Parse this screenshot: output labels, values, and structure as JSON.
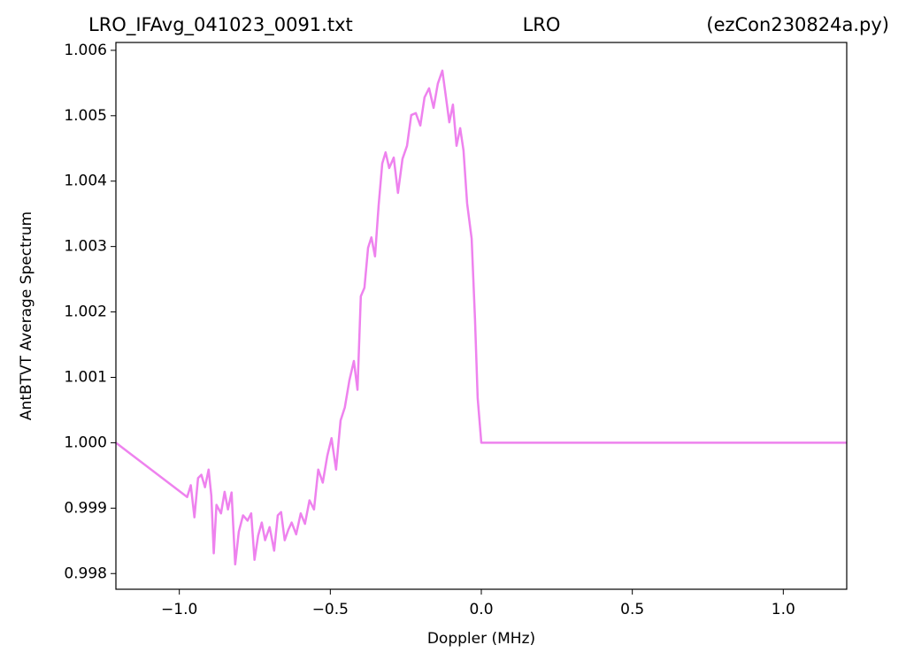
{
  "chart_data": {
    "type": "line",
    "title": "LRO",
    "title_left": "LRO_IFAvg_041023_0091.txt",
    "title_right": "(ezCon230824a.py)",
    "x_label": "Doppler (MHz)",
    "y_label": "AntBTVT Average Spectrum",
    "xlim": [
      -1.21,
      1.21
    ],
    "ylim": [
      0.99776,
      1.00612
    ],
    "xticks": [
      {
        "value": -1.0,
        "label": "−1.0"
      },
      {
        "value": -0.5,
        "label": "−0.5"
      },
      {
        "value": 0.0,
        "label": "0.0"
      },
      0.5,
      {
        "value": 1.0,
        "label": "1.0"
      }
    ],
    "yticks": [
      0.998,
      0.999,
      {
        "value": 1.0,
        "label": "1.000"
      },
      1.001,
      1.002,
      1.003,
      1.004,
      1.005,
      1.006
    ],
    "series": [
      {
        "color": "#ee82ee",
        "x": [
          -1.21,
          -0.974,
          -0.962,
          -0.95,
          -0.938,
          -0.927,
          -0.915,
          -0.903,
          -0.894,
          -0.886,
          -0.877,
          -0.862,
          -0.85,
          -0.839,
          -0.827,
          -0.815,
          -0.803,
          -0.789,
          -0.774,
          -0.762,
          -0.751,
          -0.739,
          -0.727,
          -0.716,
          -0.701,
          -0.686,
          -0.674,
          -0.663,
          -0.651,
          -0.639,
          -0.628,
          -0.613,
          -0.598,
          -0.584,
          -0.569,
          -0.554,
          -0.54,
          -0.525,
          -0.51,
          -0.496,
          -0.481,
          -0.466,
          -0.452,
          -0.437,
          -0.422,
          -0.41,
          -0.399,
          -0.387,
          -0.375,
          -0.364,
          -0.352,
          -0.34,
          -0.328,
          -0.317,
          -0.305,
          -0.29,
          -0.276,
          -0.261,
          -0.246,
          -0.232,
          -0.217,
          -0.202,
          -0.188,
          -0.173,
          -0.158,
          -0.144,
          -0.129,
          -0.117,
          -0.106,
          -0.094,
          -0.082,
          -0.07,
          -0.059,
          -0.047,
          -0.032,
          -0.021,
          -0.012,
          0.0,
          1.21
        ],
        "values": [
          1.0,
          0.99917,
          0.99935,
          0.99886,
          0.99946,
          0.99951,
          0.99932,
          0.99959,
          0.99919,
          0.99831,
          0.99905,
          0.99892,
          0.99925,
          0.99898,
          0.99924,
          0.99814,
          0.99864,
          0.99889,
          0.99881,
          0.99892,
          0.99821,
          0.99858,
          0.99878,
          0.99851,
          0.99871,
          0.99835,
          0.99889,
          0.99894,
          0.99851,
          0.99867,
          0.99878,
          0.9986,
          0.99892,
          0.99876,
          0.99912,
          0.99898,
          0.99959,
          0.99939,
          0.9998,
          1.00007,
          0.99959,
          1.00034,
          1.00054,
          1.00095,
          1.00125,
          1.00081,
          1.00224,
          1.00237,
          1.00298,
          1.00314,
          1.00285,
          1.00363,
          1.00427,
          1.00444,
          1.0042,
          1.00436,
          1.00382,
          1.00434,
          1.00454,
          1.00501,
          1.00504,
          1.00485,
          1.00528,
          1.00542,
          1.00512,
          1.00549,
          1.00569,
          1.00528,
          1.0049,
          1.00517,
          1.00454,
          1.00481,
          1.00447,
          1.00366,
          1.00312,
          1.0019,
          1.00068,
          1.0,
          1.0
        ]
      }
    ]
  }
}
